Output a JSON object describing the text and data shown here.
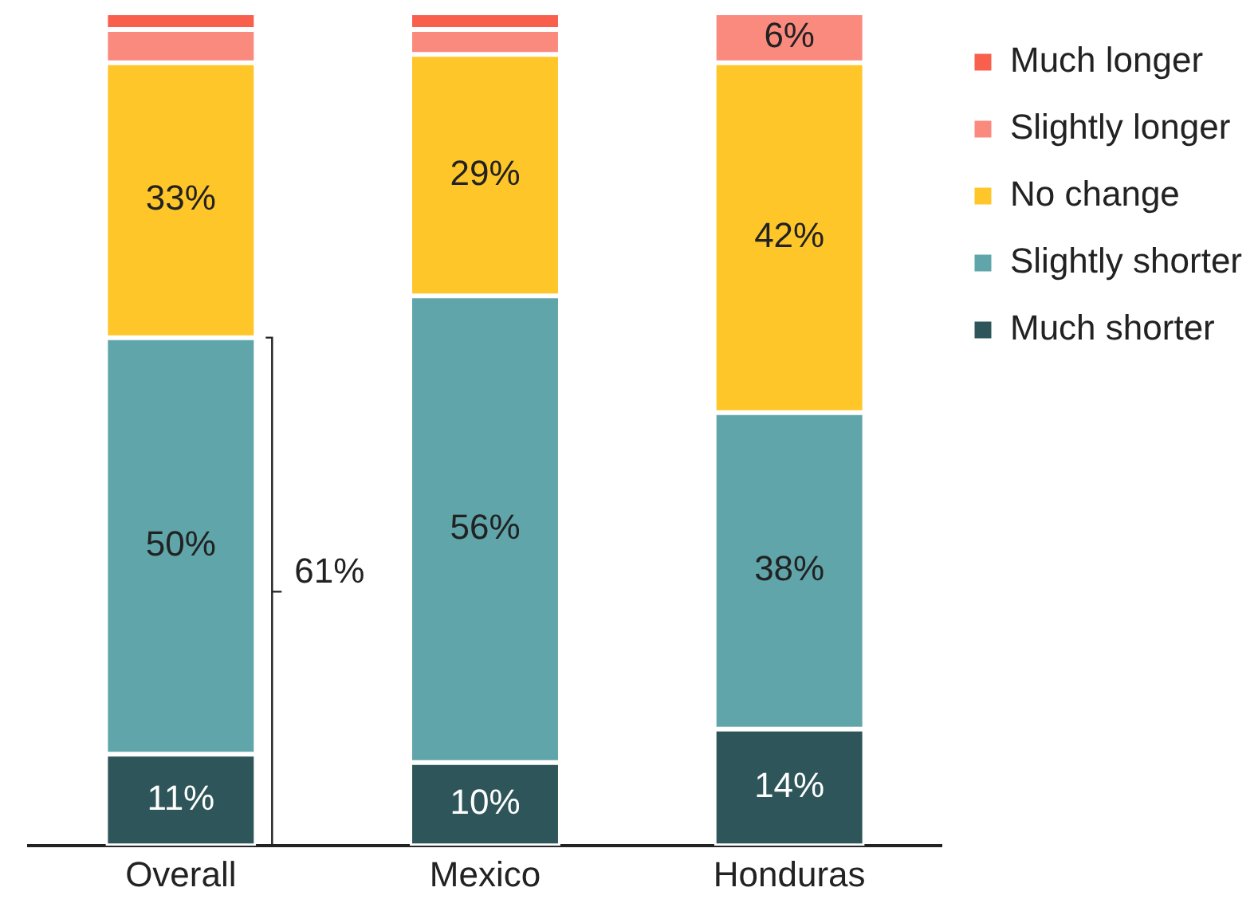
{
  "chart_data": {
    "type": "bar",
    "stacked": true,
    "categories": [
      "Overall",
      "Mexico",
      "Honduras"
    ],
    "series": [
      {
        "name": "Much shorter",
        "color": "#2e5559",
        "values": [
          11,
          10,
          14
        ],
        "value_labels": [
          "11%",
          "10%",
          "14%"
        ]
      },
      {
        "name": "Slightly shorter",
        "color": "#5fa5a9",
        "values": [
          50,
          56,
          38
        ],
        "value_labels": [
          "50%",
          "56%",
          "38%"
        ]
      },
      {
        "name": "No change",
        "color": "#ffc629",
        "values": [
          33,
          29,
          42
        ],
        "value_labels": [
          "33%",
          "29%",
          "42%"
        ]
      },
      {
        "name": "Slightly longer",
        "color": "#fb8a7e",
        "values": [
          4,
          3,
          6
        ],
        "value_labels": [
          null,
          null,
          "6%"
        ]
      },
      {
        "name": "Much longer",
        "color": "#f8604d",
        "values": [
          2,
          2,
          0
        ],
        "value_labels": [
          null,
          null,
          null
        ]
      }
    ],
    "ylim": [
      0,
      100
    ],
    "tick_labels": "x",
    "grid": false,
    "legend": "top right",
    "annotations": [
      "61%"
    ]
  }
}
